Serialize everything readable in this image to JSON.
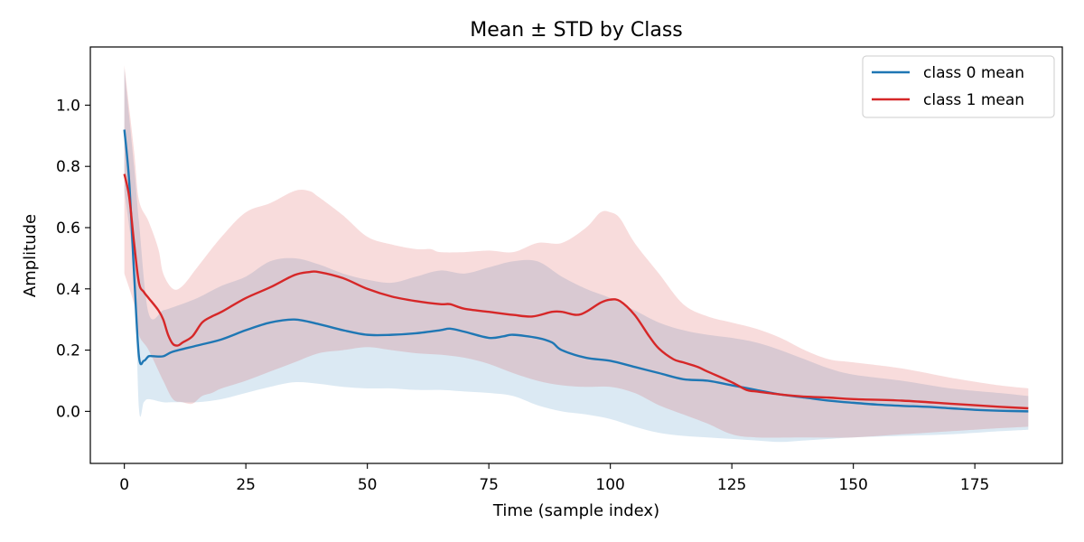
{
  "chart_data": {
    "type": "line",
    "title": "Mean ± STD by Class",
    "xlabel": "Time (sample index)",
    "ylabel": "Amplitude",
    "xlim": [
      -7,
      193
    ],
    "ylim": [
      -0.17,
      1.19
    ],
    "xticks": [
      0,
      25,
      50,
      75,
      100,
      125,
      150,
      175
    ],
    "yticks": [
      0.0,
      0.2,
      0.4,
      0.6,
      0.8,
      1.0
    ],
    "ytick_labels": [
      "0.0",
      "0.2",
      "0.4",
      "0.6",
      "0.8",
      "1.0"
    ],
    "grid": false,
    "legend_position": "top-right",
    "series": [
      {
        "name": "class 0 mean",
        "color": "#1f77b4",
        "band_color": "#1f77b4",
        "points": [
          [
            0,
            0.92
          ],
          [
            1,
            0.75
          ],
          [
            2,
            0.45
          ],
          [
            3,
            0.18
          ],
          [
            4,
            0.165
          ],
          [
            5,
            0.18
          ],
          [
            6,
            0.18
          ],
          [
            8,
            0.18
          ],
          [
            10,
            0.195
          ],
          [
            15,
            0.215
          ],
          [
            20,
            0.235
          ],
          [
            25,
            0.265
          ],
          [
            30,
            0.29
          ],
          [
            35,
            0.3
          ],
          [
            40,
            0.285
          ],
          [
            45,
            0.265
          ],
          [
            50,
            0.25
          ],
          [
            55,
            0.25
          ],
          [
            60,
            0.255
          ],
          [
            65,
            0.265
          ],
          [
            67,
            0.27
          ],
          [
            70,
            0.26
          ],
          [
            75,
            0.24
          ],
          [
            78,
            0.245
          ],
          [
            80,
            0.25
          ],
          [
            85,
            0.24
          ],
          [
            88,
            0.225
          ],
          [
            90,
            0.2
          ],
          [
            95,
            0.175
          ],
          [
            100,
            0.165
          ],
          [
            105,
            0.145
          ],
          [
            110,
            0.125
          ],
          [
            115,
            0.105
          ],
          [
            120,
            0.1
          ],
          [
            125,
            0.085
          ],
          [
            130,
            0.07
          ],
          [
            135,
            0.055
          ],
          [
            140,
            0.045
          ],
          [
            145,
            0.035
          ],
          [
            150,
            0.028
          ],
          [
            155,
            0.022
          ],
          [
            160,
            0.018
          ],
          [
            165,
            0.015
          ],
          [
            170,
            0.01
          ],
          [
            175,
            0.005
          ],
          [
            180,
            0.002
          ],
          [
            186,
            0.0
          ]
        ],
        "std_upper": [
          [
            0,
            1.12
          ],
          [
            2,
            0.8
          ],
          [
            3,
            0.62
          ],
          [
            5,
            0.32
          ],
          [
            8,
            0.33
          ],
          [
            10,
            0.34
          ],
          [
            15,
            0.37
          ],
          [
            20,
            0.41
          ],
          [
            25,
            0.44
          ],
          [
            30,
            0.49
          ],
          [
            35,
            0.5
          ],
          [
            40,
            0.48
          ],
          [
            45,
            0.45
          ],
          [
            50,
            0.43
          ],
          [
            55,
            0.42
          ],
          [
            60,
            0.44
          ],
          [
            65,
            0.46
          ],
          [
            70,
            0.45
          ],
          [
            75,
            0.47
          ],
          [
            80,
            0.49
          ],
          [
            85,
            0.49
          ],
          [
            90,
            0.44
          ],
          [
            95,
            0.4
          ],
          [
            100,
            0.37
          ],
          [
            105,
            0.33
          ],
          [
            110,
            0.29
          ],
          [
            115,
            0.265
          ],
          [
            120,
            0.25
          ],
          [
            125,
            0.24
          ],
          [
            130,
            0.225
          ],
          [
            135,
            0.2
          ],
          [
            140,
            0.17
          ],
          [
            145,
            0.14
          ],
          [
            150,
            0.12
          ],
          [
            160,
            0.1
          ],
          [
            170,
            0.075
          ],
          [
            180,
            0.06
          ],
          [
            186,
            0.05
          ]
        ],
        "std_lower": [
          [
            0,
            0.72
          ],
          [
            2,
            0.45
          ],
          [
            3,
            0.01
          ],
          [
            4,
            0.03
          ],
          [
            5,
            0.04
          ],
          [
            8,
            0.03
          ],
          [
            10,
            0.03
          ],
          [
            15,
            0.03
          ],
          [
            20,
            0.04
          ],
          [
            25,
            0.06
          ],
          [
            30,
            0.08
          ],
          [
            35,
            0.095
          ],
          [
            40,
            0.09
          ],
          [
            45,
            0.08
          ],
          [
            50,
            0.075
          ],
          [
            55,
            0.075
          ],
          [
            60,
            0.07
          ],
          [
            65,
            0.07
          ],
          [
            70,
            0.065
          ],
          [
            75,
            0.06
          ],
          [
            80,
            0.05
          ],
          [
            85,
            0.02
          ],
          [
            90,
            0.0
          ],
          [
            95,
            -0.01
          ],
          [
            100,
            -0.025
          ],
          [
            105,
            -0.05
          ],
          [
            110,
            -0.07
          ],
          [
            115,
            -0.08
          ],
          [
            120,
            -0.085
          ],
          [
            125,
            -0.09
          ],
          [
            130,
            -0.095
          ],
          [
            135,
            -0.1
          ],
          [
            140,
            -0.095
          ],
          [
            145,
            -0.09
          ],
          [
            150,
            -0.085
          ],
          [
            160,
            -0.08
          ],
          [
            170,
            -0.075
          ],
          [
            180,
            -0.065
          ],
          [
            186,
            -0.06
          ]
        ]
      },
      {
        "name": "class 1 mean",
        "color": "#d62728",
        "band_color": "#d62728",
        "points": [
          [
            0,
            0.775
          ],
          [
            1,
            0.7
          ],
          [
            2,
            0.55
          ],
          [
            3,
            0.42
          ],
          [
            4,
            0.39
          ],
          [
            5,
            0.37
          ],
          [
            7,
            0.33
          ],
          [
            8,
            0.3
          ],
          [
            9,
            0.25
          ],
          [
            10,
            0.22
          ],
          [
            11,
            0.215
          ],
          [
            12,
            0.225
          ],
          [
            14,
            0.245
          ],
          [
            16,
            0.29
          ],
          [
            18,
            0.31
          ],
          [
            20,
            0.325
          ],
          [
            25,
            0.37
          ],
          [
            30,
            0.405
          ],
          [
            35,
            0.445
          ],
          [
            38,
            0.455
          ],
          [
            40,
            0.455
          ],
          [
            45,
            0.435
          ],
          [
            50,
            0.4
          ],
          [
            55,
            0.375
          ],
          [
            60,
            0.36
          ],
          [
            65,
            0.35
          ],
          [
            67,
            0.35
          ],
          [
            70,
            0.335
          ],
          [
            75,
            0.325
          ],
          [
            80,
            0.315
          ],
          [
            84,
            0.31
          ],
          [
            88,
            0.325
          ],
          [
            90,
            0.325
          ],
          [
            93,
            0.315
          ],
          [
            95,
            0.325
          ],
          [
            98,
            0.355
          ],
          [
            100,
            0.365
          ],
          [
            102,
            0.36
          ],
          [
            105,
            0.315
          ],
          [
            108,
            0.245
          ],
          [
            110,
            0.205
          ],
          [
            113,
            0.17
          ],
          [
            115,
            0.16
          ],
          [
            118,
            0.145
          ],
          [
            120,
            0.13
          ],
          [
            125,
            0.095
          ],
          [
            128,
            0.07
          ],
          [
            130,
            0.065
          ],
          [
            135,
            0.055
          ],
          [
            140,
            0.048
          ],
          [
            145,
            0.045
          ],
          [
            150,
            0.04
          ],
          [
            160,
            0.035
          ],
          [
            170,
            0.025
          ],
          [
            180,
            0.015
          ],
          [
            186,
            0.01
          ]
        ],
        "std_upper": [
          [
            0,
            1.13
          ],
          [
            2,
            0.85
          ],
          [
            3,
            0.69
          ],
          [
            5,
            0.62
          ],
          [
            7,
            0.53
          ],
          [
            8,
            0.45
          ],
          [
            10,
            0.4
          ],
          [
            12,
            0.41
          ],
          [
            15,
            0.47
          ],
          [
            20,
            0.57
          ],
          [
            25,
            0.65
          ],
          [
            30,
            0.68
          ],
          [
            35,
            0.72
          ],
          [
            38,
            0.72
          ],
          [
            40,
            0.7
          ],
          [
            45,
            0.64
          ],
          [
            50,
            0.57
          ],
          [
            55,
            0.545
          ],
          [
            60,
            0.53
          ],
          [
            63,
            0.53
          ],
          [
            65,
            0.52
          ],
          [
            70,
            0.52
          ],
          [
            75,
            0.525
          ],
          [
            80,
            0.52
          ],
          [
            85,
            0.55
          ],
          [
            90,
            0.55
          ],
          [
            95,
            0.6
          ],
          [
            98,
            0.65
          ],
          [
            100,
            0.65
          ],
          [
            102,
            0.63
          ],
          [
            105,
            0.55
          ],
          [
            110,
            0.45
          ],
          [
            115,
            0.35
          ],
          [
            120,
            0.31
          ],
          [
            125,
            0.29
          ],
          [
            130,
            0.27
          ],
          [
            135,
            0.24
          ],
          [
            140,
            0.2
          ],
          [
            145,
            0.17
          ],
          [
            150,
            0.16
          ],
          [
            160,
            0.14
          ],
          [
            170,
            0.11
          ],
          [
            180,
            0.085
          ],
          [
            186,
            0.075
          ]
        ],
        "std_lower": [
          [
            0,
            0.45
          ],
          [
            2,
            0.35
          ],
          [
            3,
            0.25
          ],
          [
            5,
            0.2
          ],
          [
            8,
            0.1
          ],
          [
            10,
            0.04
          ],
          [
            12,
            0.03
          ],
          [
            14,
            0.025
          ],
          [
            16,
            0.05
          ],
          [
            18,
            0.06
          ],
          [
            20,
            0.075
          ],
          [
            25,
            0.1
          ],
          [
            30,
            0.13
          ],
          [
            35,
            0.16
          ],
          [
            40,
            0.19
          ],
          [
            45,
            0.2
          ],
          [
            50,
            0.21
          ],
          [
            55,
            0.2
          ],
          [
            60,
            0.19
          ],
          [
            65,
            0.185
          ],
          [
            70,
            0.175
          ],
          [
            75,
            0.155
          ],
          [
            80,
            0.125
          ],
          [
            85,
            0.1
          ],
          [
            90,
            0.085
          ],
          [
            95,
            0.08
          ],
          [
            100,
            0.08
          ],
          [
            105,
            0.06
          ],
          [
            110,
            0.02
          ],
          [
            115,
            -0.01
          ],
          [
            120,
            -0.04
          ],
          [
            125,
            -0.075
          ],
          [
            130,
            -0.085
          ],
          [
            140,
            -0.085
          ],
          [
            150,
            -0.085
          ],
          [
            160,
            -0.075
          ],
          [
            170,
            -0.065
          ],
          [
            180,
            -0.055
          ],
          [
            186,
            -0.05
          ]
        ]
      }
    ]
  }
}
